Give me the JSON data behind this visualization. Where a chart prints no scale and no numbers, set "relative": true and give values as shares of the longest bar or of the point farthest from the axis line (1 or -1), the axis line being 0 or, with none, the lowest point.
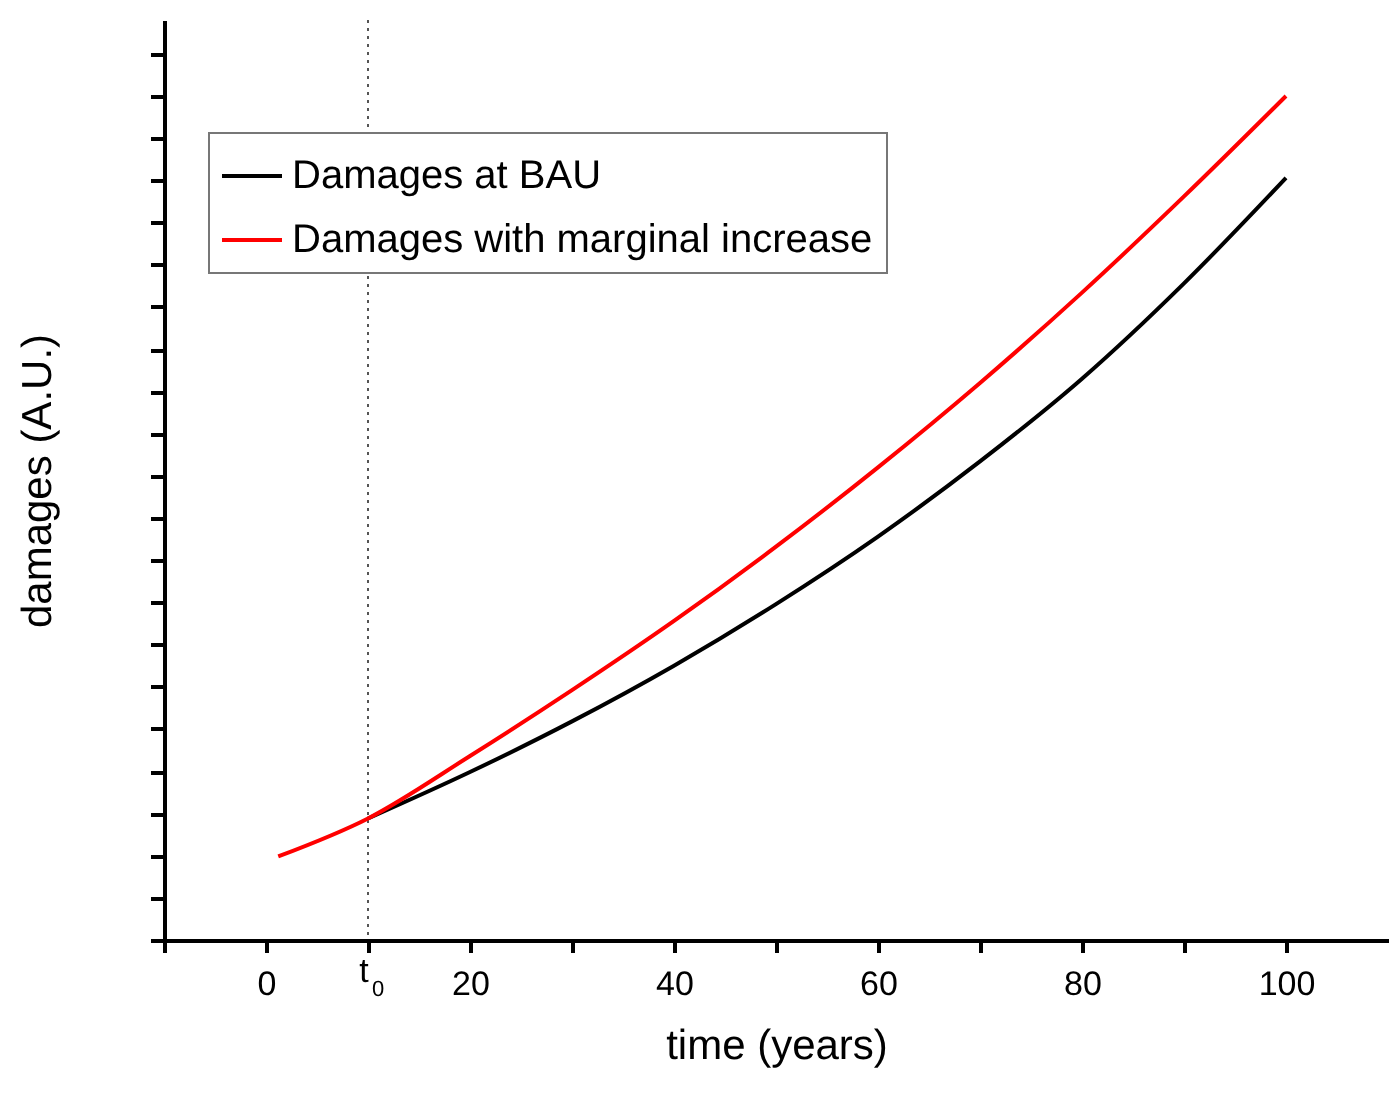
{
  "chart_data": {
    "type": "line",
    "xlabel": "time (years)",
    "ylabel": "damages (A.U.)",
    "relative": true,
    "xlim": [
      -10,
      110
    ],
    "xticks": [
      {
        "value": -10,
        "label": null
      },
      0,
      {
        "value": 10,
        "label": null
      },
      20,
      {
        "value": 30,
        "label": null
      },
      40,
      {
        "value": 50,
        "label": null
      },
      60,
      {
        "value": 70,
        "label": null
      },
      80,
      {
        "value": 90,
        "label": null
      },
      100
    ],
    "series": [
      {
        "name": "Damages at BAU",
        "color": "#000000",
        "x": [
          10,
          20,
          30,
          40,
          50,
          60,
          70,
          80,
          90,
          100
        ],
        "values": [
          0.144,
          0.199,
          0.259,
          0.325,
          0.398,
          0.478,
          0.567,
          0.665,
          0.778,
          0.903
        ]
      },
      {
        "name": "Damages with marginal increase",
        "color": "#ff0000",
        "x": [
          1.2,
          10,
          20,
          30,
          40,
          50,
          60,
          70,
          80,
          90,
          100
        ],
        "values": [
          0.099,
          0.144,
          0.218,
          0.296,
          0.378,
          0.466,
          0.56,
          0.66,
          0.767,
          0.881,
          1.0
        ]
      }
    ],
    "ref_lines": [
      {
        "axis": "x",
        "value": 10,
        "label": "t$_{0}$",
        "color": "#555555",
        "line_style": "dotted"
      }
    ],
    "legend": "top left",
    "grid": false,
    "line_style": "solid",
    "marker": "none"
  }
}
